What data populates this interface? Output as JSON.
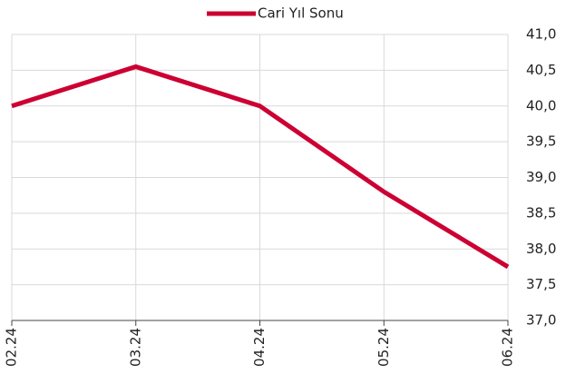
{
  "chart_data": {
    "type": "line",
    "categories": [
      "02.24",
      "03.24",
      "04.24",
      "05.24",
      "06.24"
    ],
    "series": [
      {
        "name": "Cari Yıl Sonu",
        "color": "#cc0033",
        "values": [
          40.0,
          40.55,
          40.0,
          38.8,
          37.75
        ]
      }
    ],
    "ylim": [
      37.0,
      41.0
    ],
    "yticks": [
      {
        "value": 37,
        "label": "37,0"
      },
      {
        "value": 37.5,
        "label": "37,5"
      },
      {
        "value": 38,
        "label": "38,0"
      },
      {
        "value": 38.5,
        "label": "38,5"
      },
      {
        "value": 39,
        "label": "39,0"
      },
      {
        "value": 39.5,
        "label": "39,5"
      },
      {
        "value": 40,
        "label": "40,0"
      },
      {
        "value": 40.5,
        "label": "40,5"
      },
      {
        "value": 41,
        "label": "41,0"
      }
    ],
    "grid": true,
    "legend": "top"
  }
}
